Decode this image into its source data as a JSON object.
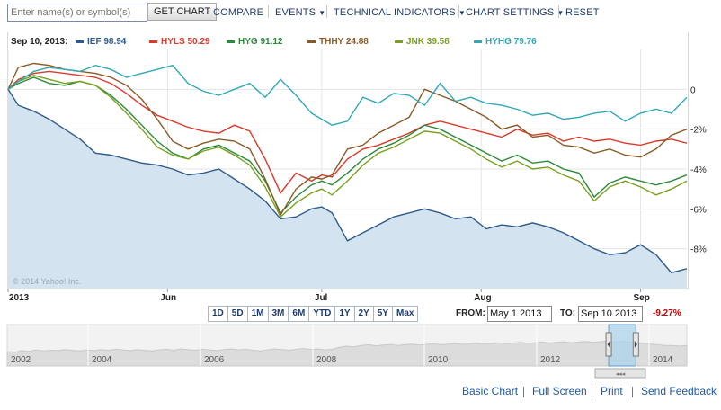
{
  "toolbar": {
    "search_placeholder": "Enter name(s) or symbol(s)",
    "get_chart_label": "GET CHART",
    "compare_label": "COMPARE",
    "events_label": "EVENTS",
    "technical_label": "TECHNICAL INDICATORS",
    "settings_label": "CHART SETTINGS",
    "reset_label": "RESET"
  },
  "legend": {
    "date": "Sep 10, 2013:",
    "items": [
      {
        "text": "IEF 98.94",
        "color": "#2e5a8c"
      },
      {
        "text": "HYLS 50.29",
        "color": "#d93a2a"
      },
      {
        "text": "HYG 91.12",
        "color": "#2a8a3a"
      },
      {
        "text": "THHY 24.88",
        "color": "#8a5a24"
      },
      {
        "text": "JNK 39.58",
        "color": "#7aa020"
      },
      {
        "text": "HYHG 79.76",
        "color": "#30a8b8"
      }
    ]
  },
  "chart_data": {
    "type": "line",
    "x_axis_labels": [
      {
        "label": "2013",
        "day": 1
      },
      {
        "label": "Jun",
        "day": 32
      },
      {
        "label": "Jul",
        "day": 62
      },
      {
        "label": "Aug",
        "day": 93
      },
      {
        "label": "Sep",
        "day": 124
      }
    ],
    "x_range_days": [
      1,
      133
    ],
    "ylim": [
      -10,
      2
    ],
    "y_ticks": [
      {
        "value": 0,
        "label": "0"
      },
      {
        "value": -2,
        "label": "-2%"
      },
      {
        "value": -4,
        "label": "-4%"
      },
      {
        "value": -6,
        "label": "-6%"
      },
      {
        "value": -8,
        "label": "-8%"
      }
    ],
    "watermark": "© 2014 Yahoo! Inc.",
    "series": [
      {
        "name": "IEF",
        "color": "#2e5a8c",
        "fill": true,
        "x": [
          1,
          3,
          6,
          9,
          12,
          15,
          18,
          21,
          24,
          27,
          30,
          33,
          36,
          39,
          42,
          45,
          48,
          51,
          54,
          57,
          60,
          62,
          64,
          67,
          70,
          73,
          76,
          79,
          82,
          85,
          88,
          91,
          94,
          97,
          100,
          103,
          106,
          109,
          112,
          115,
          118,
          121,
          124,
          127,
          130,
          133
        ],
        "values": [
          0,
          -0.8,
          -1.1,
          -1.5,
          -2.0,
          -2.5,
          -3.2,
          -3.3,
          -3.5,
          -3.7,
          -3.8,
          -4.0,
          -4.3,
          -4.2,
          -4.0,
          -4.5,
          -5.0,
          -5.6,
          -6.5,
          -6.4,
          -6.0,
          -5.9,
          -6.2,
          -7.6,
          -7.2,
          -6.8,
          -6.4,
          -6.2,
          -6.0,
          -6.2,
          -6.5,
          -6.4,
          -7.0,
          -6.8,
          -6.9,
          -6.7,
          -6.9,
          -7.2,
          -7.6,
          -8.0,
          -8.3,
          -8.2,
          -7.8,
          -8.3,
          -9.2,
          -9.0
        ]
      },
      {
        "name": "HYLS",
        "color": "#d93a2a",
        "fill": false,
        "x": [
          1,
          3,
          6,
          9,
          12,
          15,
          18,
          21,
          24,
          27,
          30,
          33,
          36,
          39,
          42,
          45,
          48,
          51,
          54,
          57,
          60,
          62,
          64,
          67,
          70,
          73,
          76,
          79,
          82,
          85,
          88,
          91,
          94,
          97,
          100,
          103,
          106,
          109,
          112,
          115,
          118,
          121,
          124,
          127,
          130,
          133
        ],
        "values": [
          0,
          0.5,
          0.8,
          0.9,
          0.8,
          0.7,
          0.6,
          0.3,
          -0.2,
          -0.8,
          -1.3,
          -1.6,
          -1.9,
          -2.1,
          -2.2,
          -1.8,
          -2.1,
          -3.5,
          -5.2,
          -4.2,
          -4.6,
          -4.3,
          -4.4,
          -3.5,
          -3.0,
          -2.8,
          -2.5,
          -2.2,
          -1.8,
          -1.6,
          -1.8,
          -2.0,
          -2.2,
          -2.4,
          -2.0,
          -2.3,
          -2.2,
          -2.6,
          -2.4,
          -2.6,
          -2.5,
          -2.7,
          -2.8,
          -2.6,
          -2.5,
          -2.7
        ]
      },
      {
        "name": "HYG",
        "color": "#2a8a3a",
        "fill": false,
        "x": [
          1,
          3,
          6,
          9,
          12,
          15,
          18,
          21,
          24,
          27,
          30,
          33,
          36,
          39,
          42,
          45,
          48,
          51,
          54,
          57,
          60,
          62,
          64,
          67,
          70,
          73,
          76,
          79,
          82,
          85,
          88,
          91,
          94,
          97,
          100,
          103,
          106,
          109,
          112,
          115,
          118,
          121,
          124,
          127,
          130,
          133
        ],
        "values": [
          0,
          0.3,
          0.6,
          0.3,
          0.2,
          0.4,
          0.2,
          -0.3,
          -1.0,
          -1.8,
          -2.6,
          -3.2,
          -3.5,
          -3.0,
          -2.8,
          -3.2,
          -3.6,
          -4.6,
          -6.2,
          -5.4,
          -4.8,
          -4.6,
          -4.8,
          -4.2,
          -3.5,
          -3.0,
          -2.7,
          -2.3,
          -1.8,
          -2.0,
          -2.4,
          -2.8,
          -3.2,
          -3.6,
          -3.3,
          -3.7,
          -3.6,
          -4.0,
          -4.2,
          -5.4,
          -4.7,
          -4.4,
          -4.6,
          -4.8,
          -4.6,
          -4.3
        ]
      },
      {
        "name": "THHY",
        "color": "#8a5a24",
        "fill": false,
        "x": [
          1,
          3,
          6,
          9,
          12,
          15,
          18,
          21,
          24,
          27,
          30,
          33,
          36,
          39,
          42,
          45,
          48,
          51,
          54,
          57,
          60,
          62,
          64,
          67,
          70,
          73,
          76,
          79,
          82,
          85,
          88,
          91,
          94,
          97,
          100,
          103,
          106,
          109,
          112,
          115,
          118,
          121,
          124,
          127,
          130,
          133
        ],
        "values": [
          0,
          1.1,
          1.3,
          1.2,
          1.0,
          0.9,
          0.8,
          0.6,
          0.2,
          -0.5,
          -1.5,
          -2.6,
          -3.0,
          -2.7,
          -2.5,
          -2.6,
          -3.0,
          -4.5,
          -6.3,
          -5.0,
          -4.4,
          -4.5,
          -4.3,
          -3.0,
          -2.8,
          -2.2,
          -1.8,
          -1.4,
          0.0,
          -0.3,
          -0.6,
          -1.0,
          -1.4,
          -2.0,
          -1.8,
          -2.4,
          -2.3,
          -2.8,
          -2.9,
          -3.2,
          -3.0,
          -3.3,
          -3.4,
          -3.0,
          -2.3,
          -2.0
        ]
      },
      {
        "name": "JNK",
        "color": "#7aa020",
        "fill": false,
        "x": [
          1,
          3,
          6,
          9,
          12,
          15,
          18,
          21,
          24,
          27,
          30,
          33,
          36,
          39,
          42,
          45,
          48,
          51,
          54,
          57,
          60,
          62,
          64,
          67,
          70,
          73,
          76,
          79,
          82,
          85,
          88,
          91,
          94,
          97,
          100,
          103,
          106,
          109,
          112,
          115,
          118,
          121,
          124,
          127,
          130,
          133
        ],
        "values": [
          0,
          0.4,
          0.7,
          0.5,
          0.3,
          0.4,
          0.2,
          -0.4,
          -1.2,
          -2.0,
          -2.9,
          -3.3,
          -3.5,
          -3.1,
          -2.9,
          -3.3,
          -3.8,
          -4.9,
          -6.4,
          -5.7,
          -5.2,
          -5.0,
          -5.3,
          -4.6,
          -3.8,
          -3.2,
          -2.9,
          -2.5,
          -2.1,
          -2.2,
          -2.6,
          -3.0,
          -3.5,
          -3.9,
          -3.6,
          -4.0,
          -3.9,
          -4.3,
          -4.6,
          -5.6,
          -4.9,
          -4.6,
          -4.9,
          -5.3,
          -5.0,
          -4.6
        ]
      },
      {
        "name": "HYHG",
        "color": "#30a8b8",
        "fill": false,
        "x": [
          1,
          3,
          6,
          9,
          12,
          15,
          18,
          21,
          24,
          27,
          30,
          33,
          36,
          39,
          42,
          45,
          48,
          51,
          54,
          57,
          60,
          62,
          64,
          67,
          70,
          73,
          76,
          79,
          82,
          85,
          88,
          91,
          94,
          97,
          100,
          103,
          106,
          109,
          112,
          115,
          118,
          121,
          124,
          127,
          130,
          133
        ],
        "values": [
          0,
          0.4,
          0.9,
          1.1,
          1.0,
          0.9,
          1.2,
          1.0,
          0.6,
          0.8,
          1.0,
          1.2,
          0.3,
          -0.1,
          -0.3,
          0.0,
          0.3,
          -0.4,
          0.5,
          -0.3,
          -1.2,
          -1.5,
          -1.8,
          -1.6,
          -0.4,
          -0.7,
          -0.2,
          -0.3,
          -0.8,
          0.3,
          -0.6,
          -0.4,
          -0.7,
          -0.8,
          -1.0,
          -1.3,
          -1.2,
          -1.5,
          -1.4,
          -1.2,
          -1.1,
          -1.6,
          -1.2,
          -1.0,
          -1.2,
          -0.4
        ]
      }
    ]
  },
  "range_buttons": [
    "1D",
    "5D",
    "1M",
    "3M",
    "6M",
    "YTD",
    "1Y",
    "2Y",
    "5Y",
    "Max"
  ],
  "date_range": {
    "from_label": "FROM:",
    "from_value": "May 1 2013",
    "to_label": "TO:",
    "to_value": "Sep 10 2013",
    "change": "-9.27%"
  },
  "navigator": {
    "years": [
      "2002",
      "2004",
      "2006",
      "2008",
      "2010",
      "2012",
      "2014"
    ],
    "selection": [
      0.885,
      0.925
    ],
    "handle_glyph": "◂◂◂"
  },
  "footer": {
    "basic_chart": "Basic Chart",
    "full_screen": "Full Screen",
    "print": "Print",
    "send_feedback": "Send Feedback"
  }
}
